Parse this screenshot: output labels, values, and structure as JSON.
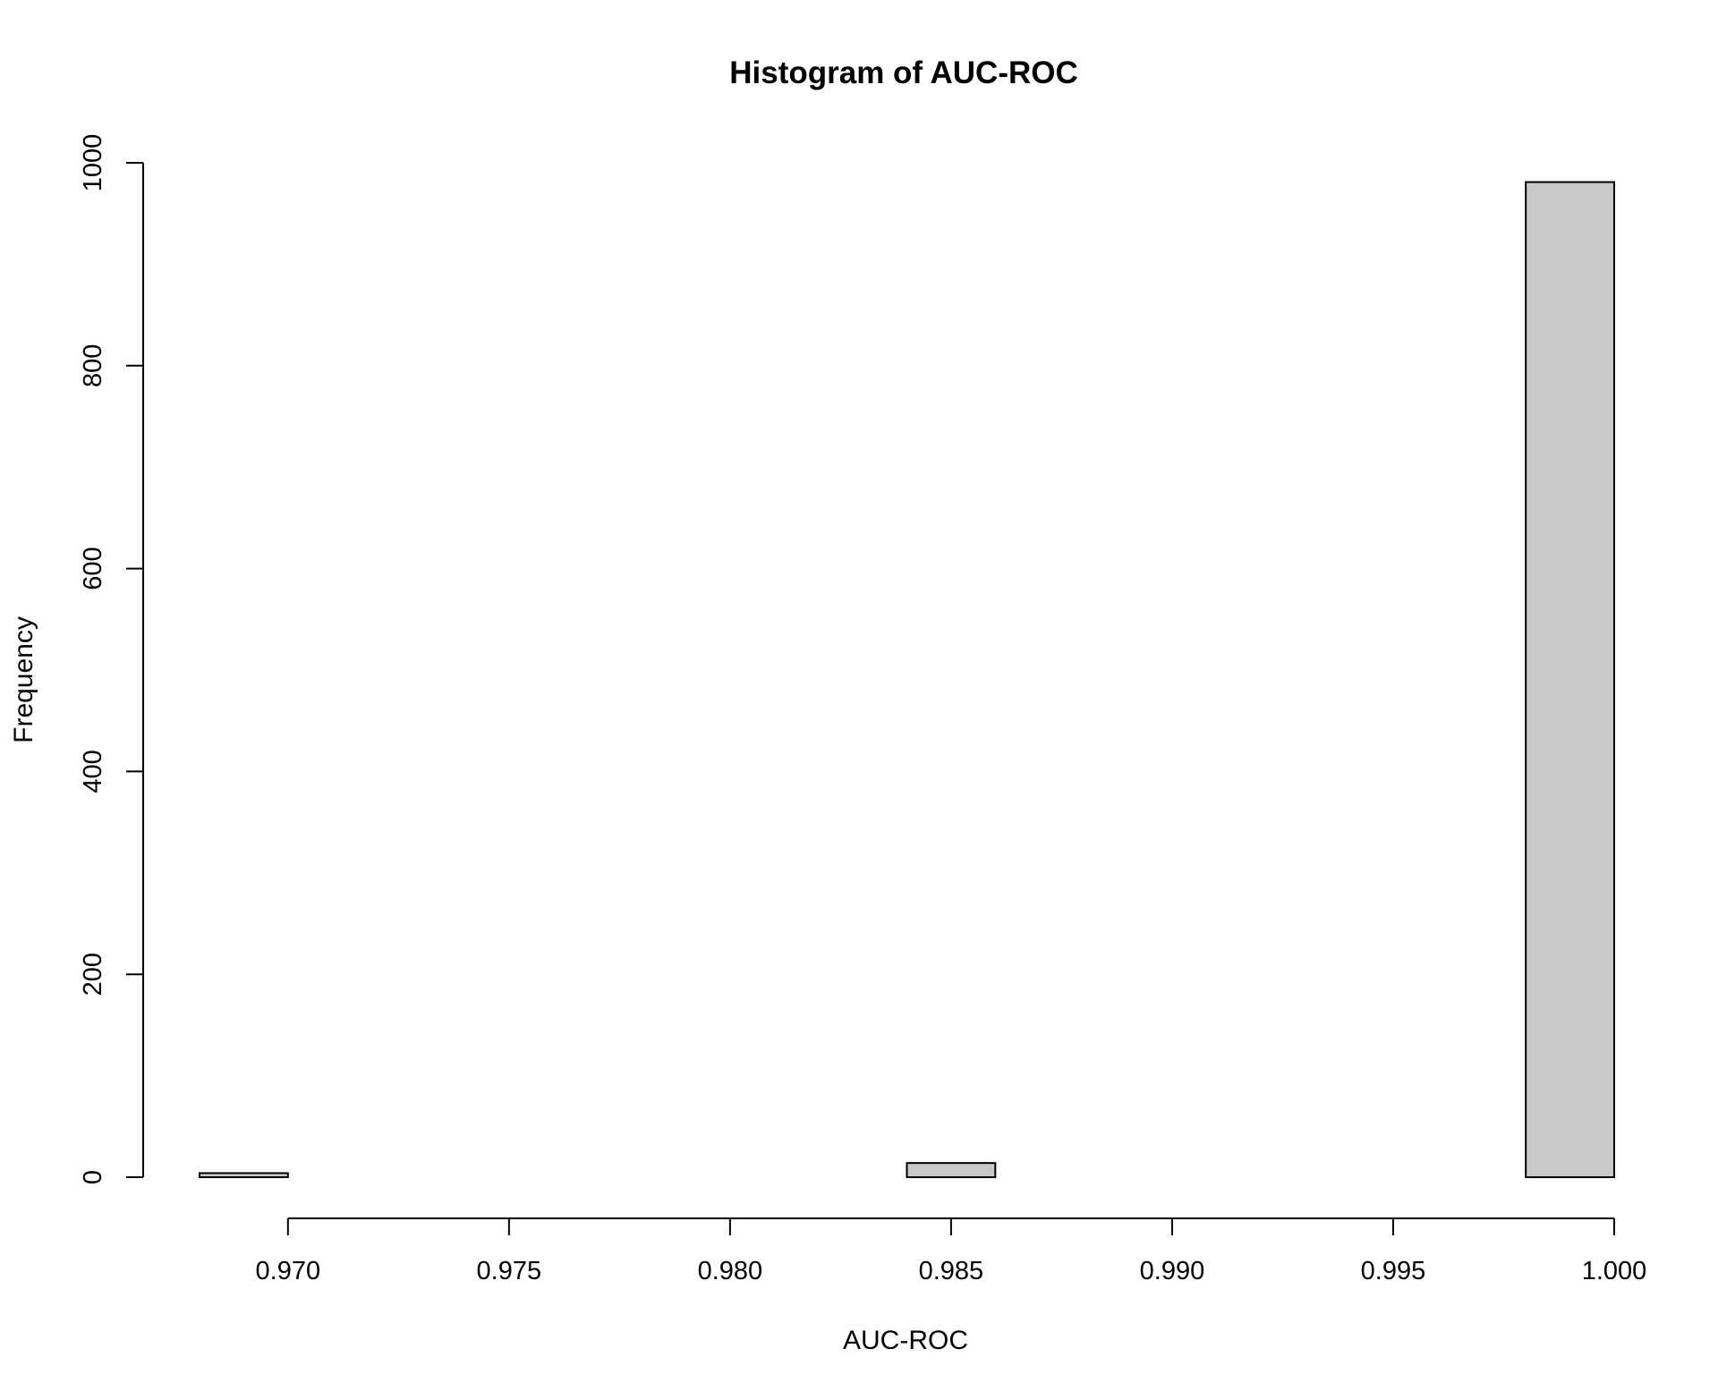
{
  "chart_data": {
    "type": "bar",
    "subtype": "histogram",
    "title": "Histogram of AUC-ROC",
    "xlabel": "AUC-ROC",
    "ylabel": "Frequency",
    "xlim": [
      0.968,
      1.0
    ],
    "ylim": [
      0,
      1000
    ],
    "x_ticks": [
      0.97,
      0.975,
      0.98,
      0.985,
      0.99,
      0.995,
      1.0
    ],
    "x_tick_labels": [
      "0.970",
      "0.975",
      "0.980",
      "0.985",
      "0.990",
      "0.995",
      "1.000"
    ],
    "y_ticks": [
      0,
      200,
      400,
      600,
      800,
      1000
    ],
    "y_tick_labels": [
      "0",
      "200",
      "400",
      "600",
      "800",
      "1000"
    ],
    "bins": [
      {
        "start": 0.968,
        "end": 0.97,
        "count": 4
      },
      {
        "start": 0.97,
        "end": 0.972,
        "count": 0
      },
      {
        "start": 0.972,
        "end": 0.974,
        "count": 0
      },
      {
        "start": 0.974,
        "end": 0.976,
        "count": 0
      },
      {
        "start": 0.976,
        "end": 0.978,
        "count": 0
      },
      {
        "start": 0.978,
        "end": 0.98,
        "count": 0
      },
      {
        "start": 0.98,
        "end": 0.982,
        "count": 0
      },
      {
        "start": 0.982,
        "end": 0.984,
        "count": 0
      },
      {
        "start": 0.984,
        "end": 0.986,
        "count": 14
      },
      {
        "start": 0.986,
        "end": 0.988,
        "count": 0
      },
      {
        "start": 0.988,
        "end": 0.99,
        "count": 0
      },
      {
        "start": 0.99,
        "end": 0.992,
        "count": 0
      },
      {
        "start": 0.992,
        "end": 0.994,
        "count": 0
      },
      {
        "start": 0.994,
        "end": 0.996,
        "count": 0
      },
      {
        "start": 0.996,
        "end": 0.998,
        "count": 0
      },
      {
        "start": 0.998,
        "end": 1.0,
        "count": 981
      }
    ],
    "grid": false,
    "legend": "none",
    "colors": {
      "bar_fill": "#c9c9c9",
      "bar_stroke": "#000000",
      "background": "#ffffff"
    }
  }
}
